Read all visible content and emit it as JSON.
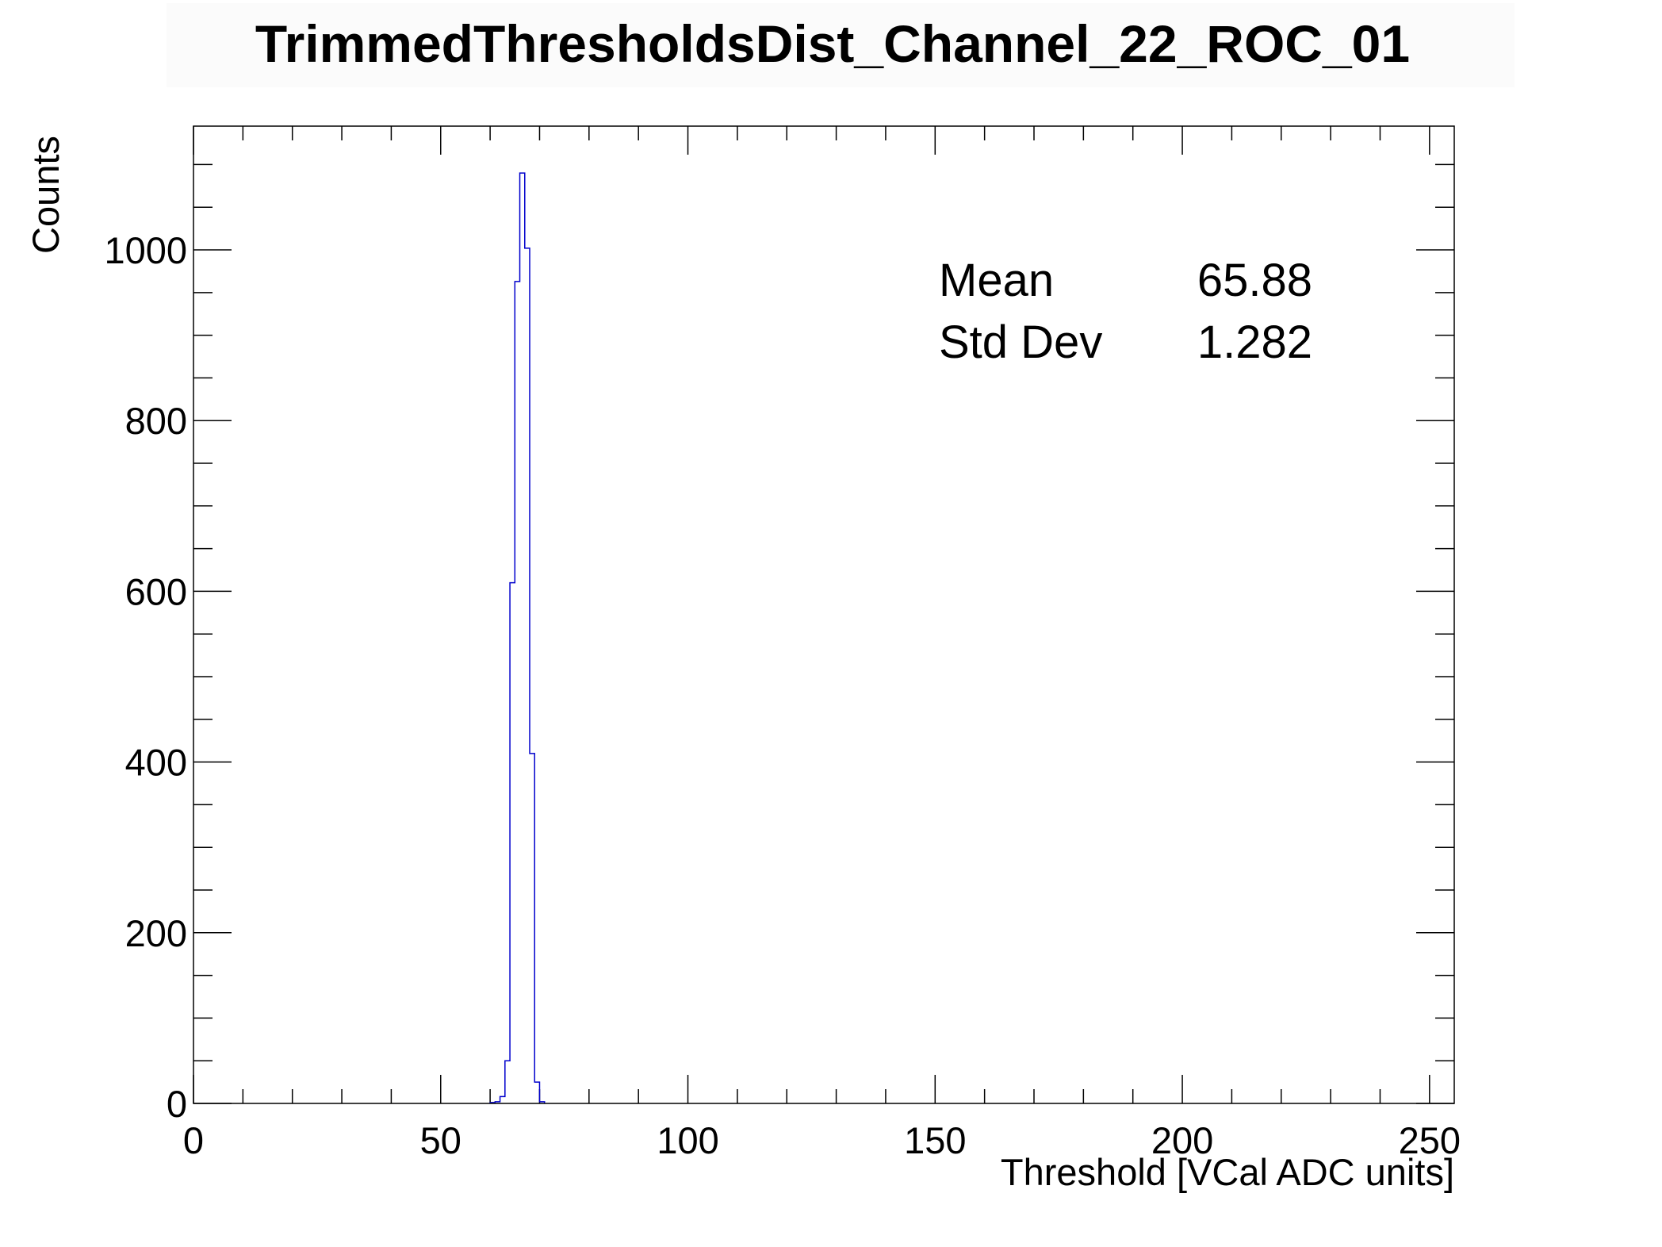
{
  "chart_data": {
    "type": "bar",
    "title": "TrimmedThresholdsDist_Channel_22_ROC_01",
    "xlabel": "Threshold [VCal ADC units]",
    "ylabel": "Counts",
    "xlim": [
      0,
      255
    ],
    "ylim": [
      0,
      1145
    ],
    "bin_width": 1,
    "x_ticks": [
      0,
      50,
      100,
      150,
      200,
      250
    ],
    "y_ticks": [
      0,
      200,
      400,
      600,
      800,
      1000
    ],
    "grid": false,
    "legend": "none",
    "series": [
      {
        "color": "#0000cc",
        "bins": [
          {
            "x0": 60,
            "x1": 61,
            "count": 1
          },
          {
            "x0": 61,
            "x1": 62,
            "count": 2
          },
          {
            "x0": 62,
            "x1": 63,
            "count": 8
          },
          {
            "x0": 63,
            "x1": 64,
            "count": 50
          },
          {
            "x0": 64,
            "x1": 65,
            "count": 610
          },
          {
            "x0": 65,
            "x1": 66,
            "count": 963
          },
          {
            "x0": 66,
            "x1": 67,
            "count": 1090
          },
          {
            "x0": 67,
            "x1": 68,
            "count": 1002
          },
          {
            "x0": 68,
            "x1": 69,
            "count": 410
          },
          {
            "x0": 69,
            "x1": 70,
            "count": 25
          },
          {
            "x0": 70,
            "x1": 71,
            "count": 2
          }
        ]
      }
    ],
    "stats": [
      {
        "label": "Mean",
        "value": "65.88"
      },
      {
        "label": "Std Dev",
        "value": "1.282"
      }
    ]
  }
}
